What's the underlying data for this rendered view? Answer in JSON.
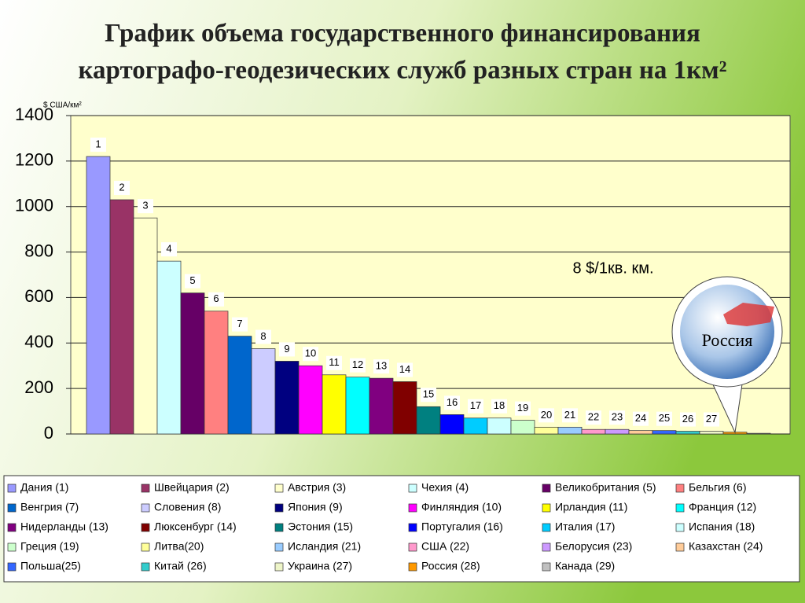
{
  "chart_data": {
    "type": "bar",
    "title": "График объема государственного финансирования",
    "subtitle": "картографо-геодезических служб разных стран на 1км²",
    "y_label": "$ США/км²",
    "annotations": [
      "8 $/1кв. км.",
      "Россия"
    ],
    "categories": [
      "Дания (1)",
      "Швейцария (2)",
      "Австрия (3)",
      "Чехия (4)",
      "Великобритания (5)",
      "Бельгия (6)",
      "Венгрия (7)",
      "Словения (8)",
      "Япония (9)",
      "Финляндия (10)",
      "Ирландия (11)",
      "Франция (12)",
      "Нидерланды (13)",
      "Люксенбург (14)",
      "Эстония (15)",
      "Португалия (16)",
      "Италия (17)",
      "Испания (18)",
      "Греция (19)",
      "Литва(20)",
      "Исландия (21)",
      "США (22)",
      "Белорусия (23)",
      "Казахстан (24)",
      "Польша(25)",
      "Китай (26)",
      "Украина (27)",
      "Россия (28)",
      "Канада (29)"
    ],
    "values": [
      1220,
      1030,
      950,
      760,
      620,
      540,
      430,
      375,
      320,
      300,
      260,
      250,
      245,
      230,
      120,
      85,
      70,
      70,
      60,
      30,
      30,
      20,
      20,
      15,
      15,
      12,
      12,
      8,
      3
    ],
    "value_labels": [
      "1",
      "2",
      "3",
      "4",
      "5",
      "6",
      "7",
      "8",
      "9",
      "10",
      "11",
      "12",
      "13",
      "14",
      "15",
      "16",
      "17",
      "18",
      "19",
      "20",
      "21",
      "22",
      "23",
      "24",
      "25",
      "26",
      "27",
      null,
      null
    ],
    "colors": [
      "#9999ff",
      "#993366",
      "#ffffcc",
      "#ccffff",
      "#660066",
      "#ff8080",
      "#0066cc",
      "#ccccff",
      "#000080",
      "#ff00ff",
      "#ffff00",
      "#00ffff",
      "#800080",
      "#800000",
      "#008080",
      "#0000ff",
      "#00ccff",
      "#ccffff",
      "#ccffcc",
      "#ffff99",
      "#99ccff",
      "#ff99cc",
      "#cc99ff",
      "#ffcc99",
      "#3366ff",
      "#33cccc",
      "#eef5c8",
      "#ff9900",
      "#c0c0c0"
    ],
    "ylim": [
      0,
      1400
    ],
    "yticks": [
      0,
      200,
      400,
      600,
      800,
      1000,
      1200,
      1400
    ],
    "grid": true,
    "legend": "bottom"
  }
}
